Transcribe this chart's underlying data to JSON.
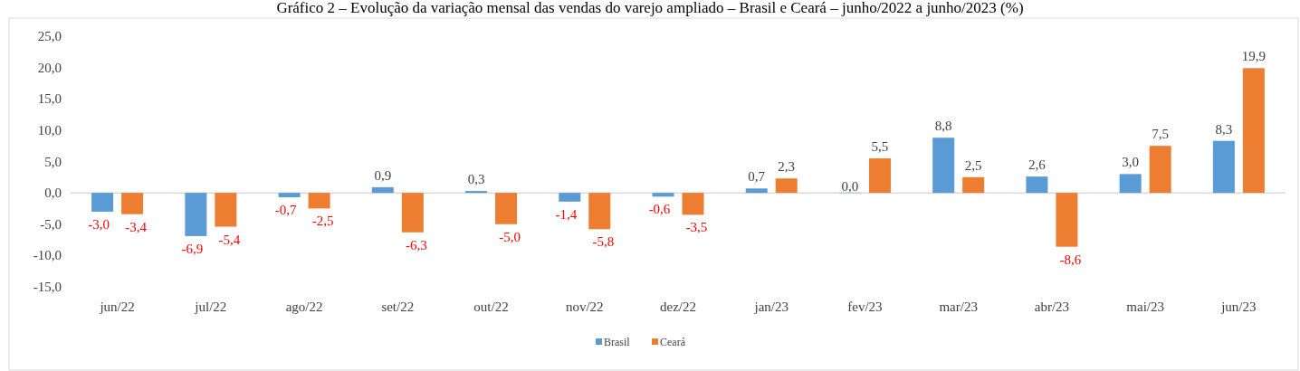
{
  "chart_data": {
    "type": "bar",
    "title": "Gráfico 2 – Evolução da variação mensal das vendas do varejo ampliado – Brasil e Ceará – junho/2022 a junho/2023 (%)",
    "categories": [
      "jun/22",
      "jul/22",
      "ago/22",
      "set/22",
      "out/22",
      "nov/22",
      "dez/22",
      "jan/23",
      "fev/23",
      "mar/23",
      "abr/23",
      "mai/23",
      "jun/23"
    ],
    "series": [
      {
        "name": "Brasil",
        "color": "#5b9bd5",
        "values": [
          -3.0,
          -6.9,
          -0.7,
          0.9,
          0.3,
          -1.4,
          -0.6,
          0.7,
          0.0,
          8.8,
          2.6,
          3.0,
          8.3
        ],
        "value_labels": [
          "-3,0",
          "-6,9",
          "-0,7",
          "0,9",
          "0,3",
          "-1,4",
          "-0,6",
          "0,7",
          "0,0",
          "8,8",
          "2,6",
          "3,0",
          "8,3"
        ]
      },
      {
        "name": "Ceará",
        "color": "#ed7d31",
        "values": [
          -3.4,
          -5.4,
          -2.5,
          -6.3,
          -5.0,
          -5.8,
          -3.5,
          2.3,
          5.5,
          2.5,
          -8.6,
          7.5,
          19.9
        ],
        "value_labels": [
          "-3,4",
          "-5,4",
          "-2,5",
          "-6,3",
          "-5,0",
          "-5,8",
          "-3,5",
          "2,3",
          "5,5",
          "2,5",
          "-8,6",
          "7,5",
          "19,9"
        ]
      }
    ],
    "ylim": [
      -15,
      25
    ],
    "yticks": [
      {
        "value": -15,
        "label": "-15,0"
      },
      {
        "value": -10,
        "label": "-10,0"
      },
      {
        "value": -5,
        "label": "-5,0"
      },
      {
        "value": 0,
        "label": "0,0"
      },
      {
        "value": 5,
        "label": "5,0"
      },
      {
        "value": 10,
        "label": "10,0"
      },
      {
        "value": 15,
        "label": "15,0"
      },
      {
        "value": 20,
        "label": "20,0"
      },
      {
        "value": 25,
        "label": "25,0"
      }
    ],
    "legend": "bottom"
  }
}
